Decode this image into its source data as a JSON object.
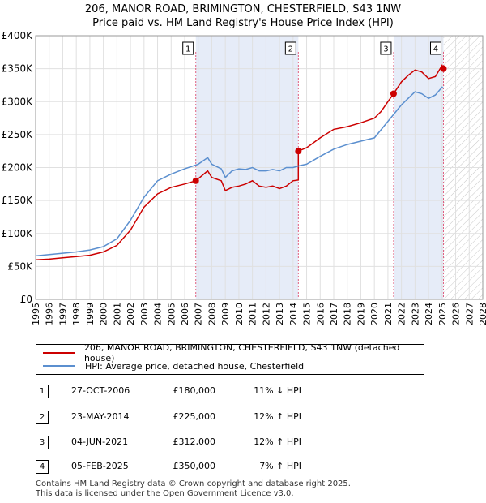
{
  "title_line1": "206, MANOR ROAD, BRIMINGTON, CHESTERFIELD, S43 1NW",
  "title_line2": "Price paid vs. HM Land Registry's House Price Index (HPI)",
  "colors": {
    "property": "#cc0000",
    "hpi": "#5b8fcf",
    "band": "#e6ecf8",
    "vline": "#e06080",
    "grid": "#e0e0e0"
  },
  "chart_data": {
    "type": "line",
    "xlim": [
      1995,
      2028
    ],
    "ylim": [
      0,
      400000
    ],
    "x_ticks": [
      1995,
      1996,
      1997,
      1998,
      1999,
      2000,
      2001,
      2002,
      2003,
      2004,
      2005,
      2006,
      2007,
      2008,
      2009,
      2010,
      2011,
      2012,
      2013,
      2014,
      2015,
      2016,
      2017,
      2018,
      2019,
      2020,
      2021,
      2022,
      2023,
      2024,
      2025,
      2026,
      2027,
      2028
    ],
    "y_ticks": [
      {
        "value": 0,
        "label": "£0"
      },
      {
        "value": 50000,
        "label": "£50K"
      },
      {
        "value": 100000,
        "label": "£100K"
      },
      {
        "value": 150000,
        "label": "£150K"
      },
      {
        "value": 200000,
        "label": "£200K"
      },
      {
        "value": 250000,
        "label": "£250K"
      },
      {
        "value": 300000,
        "label": "£300K"
      },
      {
        "value": 350000,
        "label": "£350K"
      },
      {
        "value": 400000,
        "label": "£400K"
      }
    ],
    "bands": [
      [
        2006.82,
        2014.39
      ],
      [
        2021.42,
        2025.1
      ]
    ],
    "future_start": 2025.1,
    "series": [
      {
        "name": "206, MANOR ROAD, BRIMINGTON, CHESTERFIELD, S43 1NW (detached house)",
        "color_key": "property",
        "x": [
          1995,
          1996,
          1997,
          1998,
          1999,
          2000,
          2001,
          2002,
          2003,
          2004,
          2005,
          2006,
          2006.82,
          2007,
          2007.7,
          2008,
          2008.7,
          2009,
          2009.5,
          2010,
          2010.5,
          2011,
          2011.5,
          2012,
          2012.5,
          2013,
          2013.5,
          2014,
          2014.39,
          2014.39,
          2015,
          2016,
          2017,
          2018,
          2019,
          2020,
          2020.5,
          2021,
          2021.42,
          2022,
          2022.5,
          2023,
          2023.5,
          2024,
          2024.5,
          2025,
          2025.1
        ],
        "y": [
          60000,
          61000,
          63000,
          65000,
          67000,
          72000,
          82000,
          105000,
          140000,
          160000,
          170000,
          175000,
          180000,
          183000,
          195000,
          185000,
          180000,
          165000,
          170000,
          172000,
          175000,
          180000,
          172000,
          170000,
          172000,
          168000,
          172000,
          180000,
          181000,
          225000,
          230000,
          245000,
          258000,
          262000,
          268000,
          275000,
          285000,
          300000,
          312000,
          330000,
          340000,
          348000,
          345000,
          335000,
          338000,
          355000,
          350000
        ]
      },
      {
        "name": "HPI: Average price, detached house, Chesterfield",
        "color_key": "hpi",
        "x": [
          1995,
          1996,
          1997,
          1998,
          1999,
          2000,
          2001,
          2002,
          2003,
          2004,
          2005,
          2006,
          2007,
          2007.7,
          2008,
          2008.7,
          2009,
          2009.5,
          2010,
          2010.5,
          2011,
          2011.5,
          2012,
          2012.5,
          2013,
          2013.5,
          2014,
          2014.5,
          2015,
          2016,
          2017,
          2018,
          2019,
          2020,
          2021,
          2022,
          2022.5,
          2023,
          2023.5,
          2024,
          2024.5,
          2025,
          2025.1
        ],
        "y": [
          66000,
          68000,
          70000,
          72000,
          75000,
          80000,
          92000,
          120000,
          155000,
          180000,
          190000,
          198000,
          205000,
          215000,
          205000,
          198000,
          185000,
          195000,
          198000,
          197000,
          200000,
          195000,
          195000,
          197000,
          195000,
          200000,
          200000,
          203000,
          205000,
          217000,
          228000,
          235000,
          240000,
          245000,
          270000,
          295000,
          305000,
          315000,
          312000,
          305000,
          310000,
          322000,
          320000
        ]
      }
    ],
    "sales": [
      {
        "label": "1",
        "x": 2006.82,
        "y": 180000
      },
      {
        "label": "2",
        "x": 2014.39,
        "y": 225000
      },
      {
        "label": "3",
        "x": 2021.42,
        "y": 312000
      },
      {
        "label": "4",
        "x": 2025.1,
        "y": 350000
      }
    ]
  },
  "legend": {
    "property": "206, MANOR ROAD, BRIMINGTON, CHESTERFIELD, S43 1NW (detached house)",
    "hpi": "HPI: Average price, detached house, Chesterfield"
  },
  "table": [
    {
      "num": "1",
      "date": "27-OCT-2006",
      "price": "£180,000",
      "hpi": "11% ↓ HPI"
    },
    {
      "num": "2",
      "date": "23-MAY-2014",
      "price": "£225,000",
      "hpi": "12% ↑ HPI"
    },
    {
      "num": "3",
      "date": "04-JUN-2021",
      "price": "£312,000",
      "hpi": "12% ↑ HPI"
    },
    {
      "num": "4",
      "date": "05-FEB-2025",
      "price": "£350,000",
      "hpi": "7% ↑ HPI"
    }
  ],
  "footer_line1": "Contains HM Land Registry data © Crown copyright and database right 2025.",
  "footer_line2": "This data is licensed under the Open Government Licence v3.0."
}
